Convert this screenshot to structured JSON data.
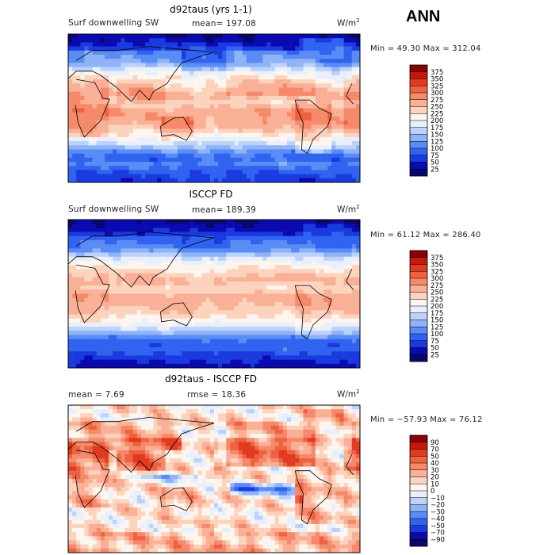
{
  "season": "ANN",
  "colors": {
    "abs_scale": [
      "#08086b",
      "#0a0ab0",
      "#1a3ae0",
      "#2f63f0",
      "#5a8cf5",
      "#8fb3f7",
      "#bcd2fa",
      "#e8f0fd",
      "#fdf5ee",
      "#fcd3bd",
      "#f9b096",
      "#f58a6a",
      "#ee6141",
      "#e23a20",
      "#c51a0a",
      "#8b0000"
    ],
    "diff_scale": [
      "#08086b",
      "#0a0ab0",
      "#1a3ae0",
      "#2f63f0",
      "#5a8cf5",
      "#8fb3f7",
      "#bcd2fa",
      "#e8f0fd",
      "#fdf5ee",
      "#fcd3bd",
      "#f9b096",
      "#f58a6a",
      "#ee6141",
      "#e23a20",
      "#c51a0a",
      "#8b0000"
    ]
  },
  "chart_data": [
    {
      "type": "heatmap",
      "title": "d92taus (yrs 1-1)",
      "variable": "Surf downwelling SW",
      "mean_label": "mean= 197.08",
      "units": "W/m",
      "units_exp": "2",
      "minmax_label": "Min =  49.30 Max = 312.04",
      "colorbar_levels": [
        "375",
        "350",
        "325",
        "300",
        "275",
        "250",
        "225",
        "200",
        "175",
        "150",
        "125",
        "100",
        "75",
        "50",
        "25"
      ],
      "field": "model"
    },
    {
      "type": "heatmap",
      "title": "ISCCP FD",
      "variable": "Surf downwelling SW",
      "mean_label": "mean= 189.39",
      "units": "W/m",
      "units_exp": "2",
      "minmax_label": "Min =  61.12 Max = 286.40",
      "colorbar_levels": [
        "375",
        "350",
        "325",
        "300",
        "275",
        "250",
        "225",
        "200",
        "175",
        "150",
        "125",
        "100",
        "75",
        "50",
        "25"
      ],
      "field": "obs"
    },
    {
      "type": "heatmap",
      "title": "d92taus - ISCCP FD",
      "mean_label": "mean =    7.69",
      "rmse_label": "rmse =   18.36",
      "units": "W/m",
      "units_exp": "2",
      "minmax_label": "Min = −57.93 Max =   76.12",
      "colorbar_levels": [
        "90",
        "70",
        "50",
        "40",
        "30",
        "20",
        "10",
        "0",
        "−10",
        "−20",
        "−30",
        "−40",
        "−50",
        "−70",
        "−90"
      ],
      "field": "diff"
    }
  ]
}
